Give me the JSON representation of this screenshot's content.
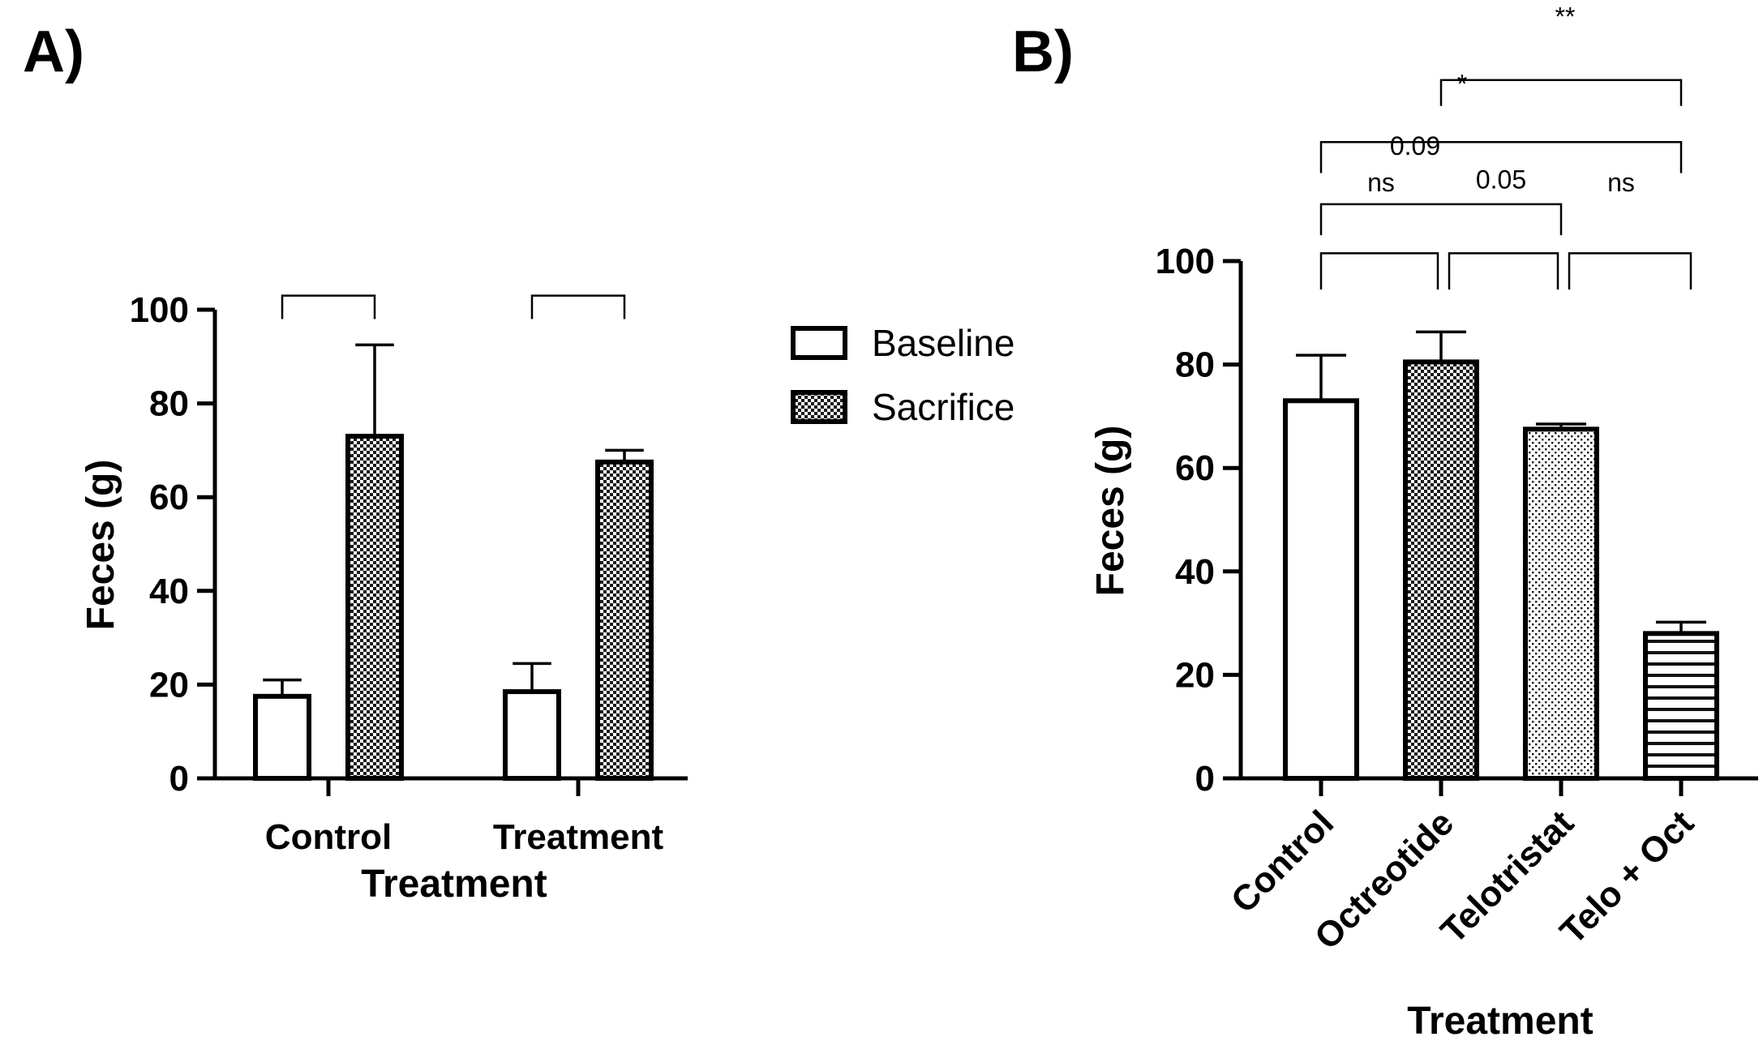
{
  "chart_data": [
    {
      "type": "bar",
      "panel_label": "A)",
      "title": "",
      "xlabel": "Treatment",
      "ylabel": "Feces (g)",
      "ylim": [
        0,
        100
      ],
      "yticks": [
        "0",
        "20",
        "40",
        "60",
        "80",
        "100"
      ],
      "categories": [
        "Control",
        "Treatment"
      ],
      "series": [
        {
          "name": "Baseline",
          "pattern": "open",
          "values": [
            17.5,
            18.5
          ],
          "errors": [
            3.5,
            6.0
          ]
        },
        {
          "name": "Sacrifice",
          "pattern": "checker",
          "values": [
            73.0,
            67.5
          ],
          "errors": [
            19.5,
            2.5
          ]
        }
      ],
      "legend_position": "right",
      "comparisons": [
        {
          "category": "Control",
          "label": ""
        },
        {
          "category": "Treatment",
          "label": ""
        }
      ]
    },
    {
      "type": "bar",
      "panel_label": "B)",
      "title": "",
      "xlabel": "Treatment",
      "ylabel": "Feces (g)",
      "ylim": [
        0,
        100
      ],
      "yticks": [
        "0",
        "20",
        "40",
        "60",
        "80",
        "100"
      ],
      "categories": [
        "Control",
        "Octreotide",
        "Telotristat",
        "Telo + Oct"
      ],
      "patterns": [
        "open",
        "checker",
        "dots",
        "hlines"
      ],
      "values": [
        73.0,
        80.5,
        67.5,
        28.0
      ],
      "errors": [
        8.8,
        5.8,
        1.0,
        2.2
      ],
      "comparisons": [
        {
          "from": 0,
          "to": 1,
          "label": "ns"
        },
        {
          "from": 1,
          "to": 2,
          "label": "0.05"
        },
        {
          "from": 2,
          "to": 3,
          "label": "ns"
        },
        {
          "from": 0,
          "to": 2,
          "label": "0.09"
        },
        {
          "from": 0,
          "to": 3,
          "label": "*"
        },
        {
          "from": 1,
          "to": 3,
          "label": "**"
        }
      ]
    }
  ]
}
